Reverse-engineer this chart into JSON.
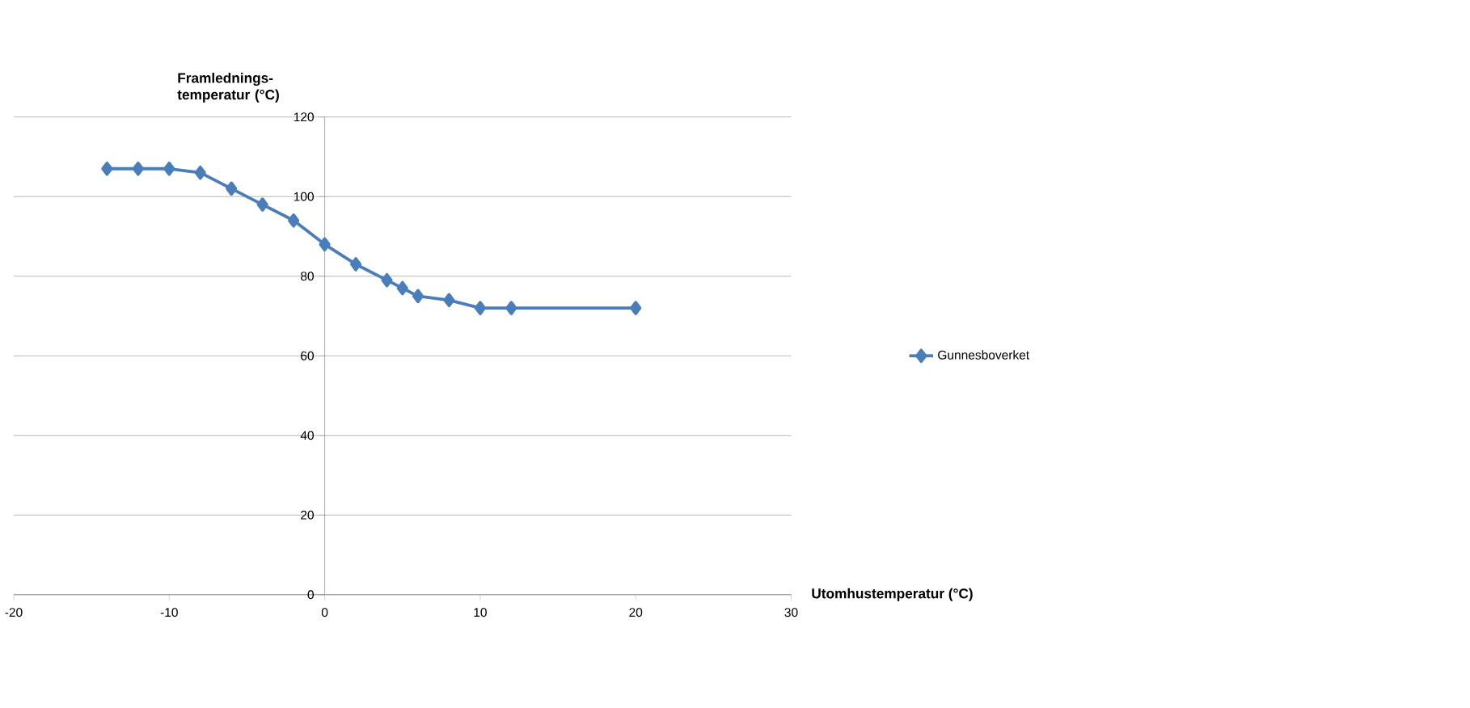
{
  "chart_data": {
    "type": "line",
    "xlabel": "Utomhustemperatur (°C)",
    "ylabel": "Framlednings-temperatur (°C)",
    "x": [
      -14,
      -12,
      -10,
      -8,
      -6,
      -4,
      -2,
      0,
      2,
      4,
      5,
      6,
      8,
      10,
      12,
      20
    ],
    "series": [
      {
        "name": "Gunnesboverket",
        "color": "#4a7ebb",
        "values": [
          107,
          107,
          107,
          106,
          102,
          98,
          94,
          88,
          83,
          79,
          77,
          75,
          74,
          72,
          72,
          72
        ]
      }
    ],
    "xlim": [
      -20,
      30
    ],
    "xticks": [
      -20,
      -10,
      0,
      10,
      20,
      30
    ],
    "ylim": [
      0,
      120
    ],
    "yticks": [
      0,
      20,
      40,
      60,
      80,
      100,
      120
    ],
    "grid": "y",
    "legend": "right",
    "marker": "diamond",
    "line_style": "solid"
  }
}
